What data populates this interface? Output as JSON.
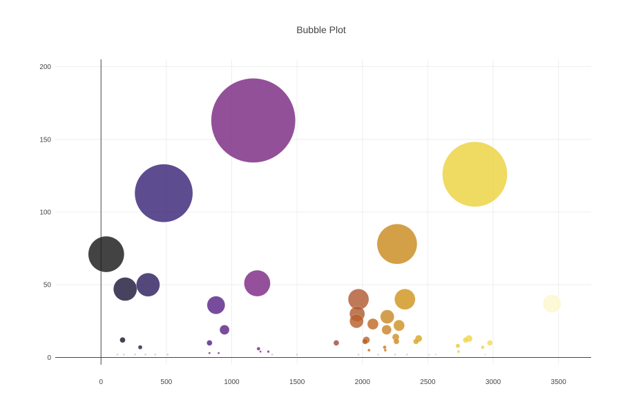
{
  "chart_data": {
    "type": "scatter",
    "title": "Bubble Plot",
    "xlabel": "",
    "ylabel": "",
    "xlim": [
      -350,
      3750
    ],
    "ylim": [
      -5,
      205
    ],
    "x_ticks": [
      0,
      500,
      1000,
      1500,
      2000,
      2500,
      3000,
      3500
    ],
    "y_ticks": [
      0,
      50,
      100,
      150,
      200
    ],
    "grid": true,
    "colorscale": "inferno-like (dark navy to purple to orange to pale yellow)",
    "points": [
      {
        "x": 40,
        "y": 71,
        "size": 26,
        "color": "#1a1a1a"
      },
      {
        "x": 185,
        "y": 47,
        "size": 17,
        "color": "#1f1a3a"
      },
      {
        "x": 360,
        "y": 50,
        "size": 17,
        "color": "#2d1f5e"
      },
      {
        "x": 480,
        "y": 113,
        "size": 42,
        "color": "#3b2478"
      },
      {
        "x": 880,
        "y": 36,
        "size": 13,
        "color": "#5a2486"
      },
      {
        "x": 945,
        "y": 19,
        "size": 7,
        "color": "#5e2586"
      },
      {
        "x": 1165,
        "y": 163,
        "size": 61,
        "color": "#7a2a82"
      },
      {
        "x": 1195,
        "y": 51,
        "size": 19,
        "color": "#7c2a84"
      },
      {
        "x": 1970,
        "y": 40,
        "size": 15,
        "color": "#b15a33"
      },
      {
        "x": 1960,
        "y": 30,
        "size": 11,
        "color": "#b15c30"
      },
      {
        "x": 1955,
        "y": 25,
        "size": 10,
        "color": "#b85f2c"
      },
      {
        "x": 2080,
        "y": 23,
        "size": 8,
        "color": "#c06a28"
      },
      {
        "x": 2030,
        "y": 12,
        "size": 5,
        "color": "#bb6227"
      },
      {
        "x": 2020,
        "y": 11,
        "size": 4,
        "color": "#b86026"
      },
      {
        "x": 2190,
        "y": 28,
        "size": 10,
        "color": "#c98a27"
      },
      {
        "x": 2185,
        "y": 19,
        "size": 7,
        "color": "#c8852a"
      },
      {
        "x": 2265,
        "y": 78,
        "size": 29,
        "color": "#c98a1e"
      },
      {
        "x": 2325,
        "y": 40,
        "size": 15,
        "color": "#cf951f"
      },
      {
        "x": 2280,
        "y": 22,
        "size": 8,
        "color": "#d09322"
      },
      {
        "x": 2255,
        "y": 14,
        "size": 5,
        "color": "#cf9124"
      },
      {
        "x": 2260,
        "y": 11,
        "size": 4,
        "color": "#cc8d26"
      },
      {
        "x": 2430,
        "y": 13,
        "size": 5,
        "color": "#d9a524"
      },
      {
        "x": 2410,
        "y": 11,
        "size": 4,
        "color": "#d9a724"
      },
      {
        "x": 2860,
        "y": 126,
        "size": 47,
        "color": "#ecd23f"
      },
      {
        "x": 2815,
        "y": 13,
        "size": 5,
        "color": "#efd54a"
      },
      {
        "x": 2790,
        "y": 12,
        "size": 4,
        "color": "#efd54a"
      },
      {
        "x": 2975,
        "y": 10,
        "size": 4,
        "color": "#f2dc5a"
      },
      {
        "x": 2730,
        "y": 8,
        "size": 3,
        "color": "#e8c73c"
      },
      {
        "x": 3450,
        "y": 37,
        "size": 13,
        "color": "#fcf6cc"
      },
      {
        "x": 165,
        "y": 12,
        "size": 4,
        "color": "#1c1a2c"
      },
      {
        "x": 300,
        "y": 7,
        "size": 3,
        "color": "#2a1f55"
      },
      {
        "x": 830,
        "y": 10,
        "size": 4,
        "color": "#552486"
      },
      {
        "x": 1800,
        "y": 10,
        "size": 4,
        "color": "#a24a40"
      },
      {
        "x": 1205,
        "y": 6,
        "size": 2.5,
        "color": "#7d2a84"
      },
      {
        "x": 2170,
        "y": 7,
        "size": 2.5,
        "color": "#c47a2a"
      },
      {
        "x": 2050,
        "y": 5,
        "size": 2,
        "color": "#bf6a2a"
      },
      {
        "x": 2175,
        "y": 5,
        "size": 2,
        "color": "#c47a2a"
      },
      {
        "x": 2735,
        "y": 4,
        "size": 2,
        "color": "#ead04a"
      },
      {
        "x": 2920,
        "y": 7,
        "size": 2.5,
        "color": "#efd64c"
      },
      {
        "x": 1280,
        "y": 4,
        "size": 1.8,
        "color": "#862c80"
      },
      {
        "x": 900,
        "y": 3,
        "size": 1.5,
        "color": "#5e2686"
      },
      {
        "x": 830,
        "y": 3,
        "size": 1.5,
        "color": "#582486"
      },
      {
        "x": 1220,
        "y": 4,
        "size": 1.5,
        "color": "#7e2a84"
      },
      {
        "x": 125,
        "y": 2,
        "size": 1.4,
        "color": "#c8c3d6"
      },
      {
        "x": 175,
        "y": 2,
        "size": 1.4,
        "color": "#c8c3d6"
      },
      {
        "x": 260,
        "y": 2,
        "size": 1.4,
        "color": "#c8c3d6"
      },
      {
        "x": 340,
        "y": 2,
        "size": 1.4,
        "color": "#c8c3d6"
      },
      {
        "x": 415,
        "y": 2,
        "size": 1.4,
        "color": "#c8c3d6"
      },
      {
        "x": 510,
        "y": 2,
        "size": 1.4,
        "color": "#c8c3d6"
      },
      {
        "x": 1310,
        "y": 2,
        "size": 1.4,
        "color": "#c8c3d6"
      },
      {
        "x": 1500,
        "y": 2,
        "size": 1.4,
        "color": "#c8c3d6"
      },
      {
        "x": 1970,
        "y": 2,
        "size": 1.4,
        "color": "#d8c8b8"
      },
      {
        "x": 2120,
        "y": 2,
        "size": 1.4,
        "color": "#d8c8b8"
      },
      {
        "x": 2250,
        "y": 2,
        "size": 1.4,
        "color": "#d8c8b8"
      },
      {
        "x": 2340,
        "y": 2,
        "size": 1.4,
        "color": "#d8c8b8"
      },
      {
        "x": 2510,
        "y": 2,
        "size": 1.4,
        "color": "#e6dcb8"
      },
      {
        "x": 2560,
        "y": 2,
        "size": 1.4,
        "color": "#e6dcb8"
      },
      {
        "x": 2940,
        "y": 2,
        "size": 1.4,
        "color": "#ede3b8"
      }
    ]
  }
}
